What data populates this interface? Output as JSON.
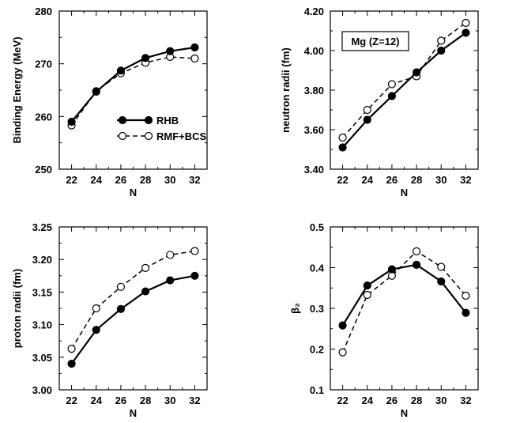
{
  "chart_data": [
    {
      "type": "line",
      "x": [
        22,
        24,
        26,
        28,
        30,
        32
      ],
      "xticks": [
        22,
        24,
        26,
        28,
        30,
        32
      ],
      "xlim": [
        21,
        33
      ],
      "xlabel": "N",
      "ylabel": "Binding Energy (MeV)",
      "ylim": [
        250,
        280
      ],
      "yticks": [
        "250",
        "260",
        "270",
        "280"
      ],
      "series": [
        {
          "name": "RHB",
          "style": "solid",
          "marker": "filled",
          "values": [
            259.0,
            264.7,
            268.7,
            271.1,
            272.4,
            273.1
          ]
        },
        {
          "name": "RMF+BCS",
          "style": "dashed",
          "marker": "open",
          "values": [
            258.3,
            264.8,
            268.2,
            270.2,
            271.3,
            271.0
          ]
        }
      ],
      "legend": {
        "position": "lower-center"
      }
    },
    {
      "type": "line",
      "x": [
        22,
        24,
        26,
        28,
        30,
        32
      ],
      "xticks": [
        22,
        24,
        26,
        28,
        30,
        32
      ],
      "xlim": [
        21,
        33
      ],
      "xlabel": "N",
      "ylabel": "neutron radii (fm)",
      "ylim": [
        3.4,
        4.2
      ],
      "yticks": [
        "3.40",
        "3.60",
        "3.80",
        "4.00",
        "4.20"
      ],
      "annotation": "Mg (Z=12)",
      "series": [
        {
          "name": "RHB",
          "style": "solid",
          "marker": "filled",
          "values": [
            3.51,
            3.65,
            3.77,
            3.89,
            4.0,
            4.09
          ]
        },
        {
          "name": "RMF+BCS",
          "style": "dashed",
          "marker": "open",
          "values": [
            3.56,
            3.7,
            3.83,
            3.87,
            4.05,
            4.14
          ]
        }
      ]
    },
    {
      "type": "line",
      "x": [
        22,
        24,
        26,
        28,
        30,
        32
      ],
      "xticks": [
        22,
        24,
        26,
        28,
        30,
        32
      ],
      "xlim": [
        21,
        33
      ],
      "xlabel": "N",
      "ylabel": "proton radii (fm)",
      "ylim": [
        3.0,
        3.25
      ],
      "yticks": [
        "3.00",
        "3.05",
        "3.10",
        "3.15",
        "3.20",
        "3.25"
      ],
      "series": [
        {
          "name": "RHB",
          "style": "solid",
          "marker": "filled",
          "values": [
            3.04,
            3.092,
            3.124,
            3.151,
            3.168,
            3.175
          ]
        },
        {
          "name": "RMF+BCS",
          "style": "dashed",
          "marker": "open",
          "values": [
            3.063,
            3.125,
            3.158,
            3.187,
            3.207,
            3.213
          ]
        }
      ]
    },
    {
      "type": "line",
      "x": [
        22,
        24,
        26,
        28,
        30,
        32
      ],
      "xticks": [
        22,
        24,
        26,
        28,
        30,
        32
      ],
      "xlim": [
        21,
        33
      ],
      "xlabel": "N",
      "ylabel": "β₂",
      "ylim": [
        0.1,
        0.5
      ],
      "yticks": [
        "0.1",
        "0.2",
        "0.3",
        "0.4",
        "0.5"
      ],
      "series": [
        {
          "name": "RHB",
          "style": "solid",
          "marker": "filled",
          "values": [
            0.258,
            0.356,
            0.396,
            0.407,
            0.366,
            0.289
          ]
        },
        {
          "name": "RMF+BCS",
          "style": "dashed",
          "marker": "open",
          "values": [
            0.192,
            0.333,
            0.38,
            0.44,
            0.402,
            0.331
          ]
        }
      ]
    }
  ]
}
